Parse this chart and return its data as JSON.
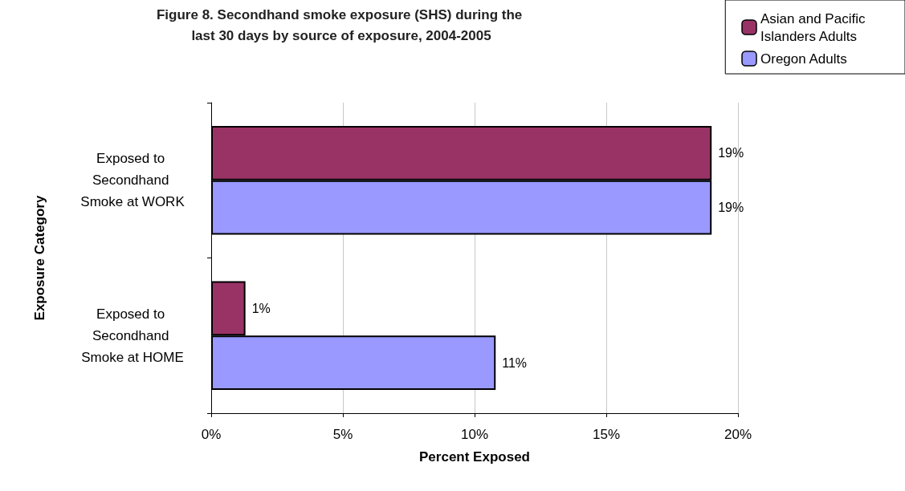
{
  "chart_data": {
    "type": "bar",
    "orientation": "horizontal",
    "title": "Figure 8. Secondhand smoke exposure (SHS) during the last 30 days by source of exposure, 2004-2005",
    "xlabel": "Percent Exposed",
    "ylabel": "Exposure Category",
    "categories": [
      "Exposed to Secondhand Smoke at WORK",
      "Exposed to Secondhand Smoke at HOME"
    ],
    "series": [
      {
        "name": "Asian and Pacific Islanders Adults",
        "color": "#993366",
        "values": [
          19.0,
          1.3
        ],
        "value_labels": [
          "19%",
          "1%"
        ]
      },
      {
        "name": "Oregon Adults",
        "color": "#9999ff",
        "values": [
          19.0,
          10.8
        ],
        "value_labels": [
          "19%",
          "11%"
        ]
      }
    ],
    "xlim": [
      0,
      20
    ],
    "xticks": [
      {
        "value": 0,
        "label": "0%"
      },
      {
        "value": 5,
        "label": "5%"
      },
      {
        "value": 10,
        "label": "10%"
      },
      {
        "value": 15,
        "label": "15%"
      },
      {
        "value": 20,
        "label": "20%"
      }
    ],
    "grid": "x",
    "legend": "top right"
  }
}
